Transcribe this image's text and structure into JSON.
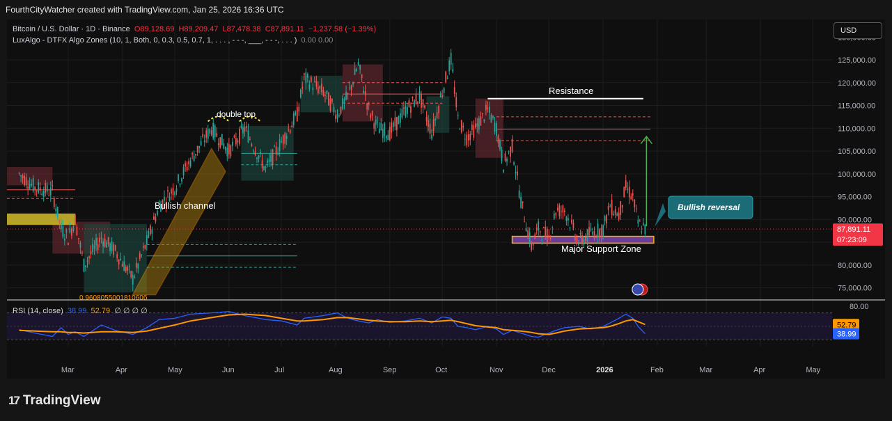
{
  "header": {
    "attribution": "FourthCityWatcher created with TradingView.com, Jan 25, 2026 16:36 UTC"
  },
  "legend": {
    "symbol": "Bitcoin / U.S. Dollar · 1D · Binance",
    "open": "O89,128.69",
    "high": "H89,209.47",
    "low": "L87,478.38",
    "close": "C87,891.11",
    "change": "−1,237.58 (−1.39%)",
    "indicator": "LuxAlgo - DTFX Algo Zones (10, 1, Both, 0, 0.3, 0.5, 0.7, 1, . . . , - - -, ___, - - -, . . . )",
    "indicator_values": "0.00  0.00"
  },
  "currency_button": "USD",
  "rsi_legend": {
    "name": "RSI (14, close)",
    "rsi": "38.99",
    "ma": "52.79",
    "extra": "∅ ∅ ∅ ∅"
  },
  "brand": "TradingView",
  "colors": {
    "up": "#26a69a",
    "down": "#ef5350",
    "rsi": "#2962ff",
    "rsi_ma": "#ff9800",
    "price_label": "#f23645",
    "callout": "#1b6c76",
    "arrow": "#4caf50",
    "support": "#6a3d9a"
  },
  "chart_data": [
    {
      "type": "line",
      "name_label": "Bitcoin / U.S. Dollar · 1D · Binance",
      "x_ticks": [
        "Mar",
        "Apr",
        "May",
        "Jun",
        "Jul",
        "Aug",
        "Sep",
        "Oct",
        "Nov",
        "Dec",
        "2026",
        "Feb",
        "Mar",
        "Apr",
        "May"
      ],
      "y_ticks": [
        75000,
        80000,
        85000,
        90000,
        95000,
        100000,
        105000,
        110000,
        115000,
        120000,
        125000
      ],
      "y_tick_labels": [
        "75,000.00",
        "80,000.00",
        "85,000.00",
        "90,000.00",
        "95,000.00",
        "100,000.00",
        "105,000.00",
        "110,000.00",
        "115,000.00",
        "120,000.00",
        "125,000.00"
      ],
      "y_top_partial": "130,000.00",
      "ylim": [
        72500,
        130500
      ],
      "series": [
        {
          "x": [
            "2025-02-01",
            "2025-02-10",
            "2025-02-20",
            "2025-02-25",
            "2025-03-01",
            "2025-03-05",
            "2025-03-10",
            "2025-03-20",
            "2025-03-28",
            "2025-04-07",
            "2025-04-15",
            "2025-04-22",
            "2025-05-01",
            "2025-05-10",
            "2025-05-22",
            "2025-06-01",
            "2025-06-10",
            "2025-06-22",
            "2025-07-01",
            "2025-07-10",
            "2025-07-14",
            "2025-07-25",
            "2025-08-02",
            "2025-08-08",
            "2025-08-14",
            "2025-08-20",
            "2025-08-25",
            "2025-09-01",
            "2025-09-10",
            "2025-09-18",
            "2025-09-25",
            "2025-10-01",
            "2025-10-06",
            "2025-10-10",
            "2025-10-15",
            "2025-10-20",
            "2025-10-27",
            "2025-11-01",
            "2025-11-05",
            "2025-11-10",
            "2025-11-15",
            "2025-11-21",
            "2025-11-25",
            "2025-12-01",
            "2025-12-05",
            "2025-12-10",
            "2025-12-18",
            "2025-12-25",
            "2026-01-01",
            "2026-01-05",
            "2026-01-10",
            "2026-01-14",
            "2026-01-18",
            "2026-01-21",
            "2026-01-25"
          ],
          "y": [
            100000,
            97000,
            96000,
            88000,
            86000,
            90000,
            80000,
            86000,
            83000,
            77000,
            85000,
            93000,
            97000,
            103000,
            110000,
            105000,
            110000,
            101000,
            107000,
            113000,
            121000,
            118000,
            113000,
            117000,
            124000,
            114000,
            110000,
            109000,
            114000,
            117000,
            109000,
            118000,
            125000,
            112000,
            108000,
            110000,
            114000,
            110000,
            102000,
            106000,
            94000,
            84000,
            88000,
            86000,
            92000,
            92000,
            85000,
            87000,
            88000,
            93000,
            91000,
            97000,
            95000,
            89000,
            87891
          ]
        }
      ],
      "annotations": [
        "double top",
        "Bullish channel",
        "0.960805500181060б",
        "Resistance",
        "Bullish reversal",
        "Major Support Zone"
      ],
      "last_price_label": "87,891.11",
      "countdown_label": "07:23:09"
    },
    {
      "type": "line",
      "name_label": "RSI (14, close)",
      "y_ticks_label": "80.00",
      "ylim": [
        20,
        82
      ],
      "series": [
        {
          "name": "RSI",
          "last": 38.99,
          "y": [
            45,
            40,
            35,
            48,
            38,
            42,
            35,
            52,
            44,
            38,
            48,
            60,
            62,
            68,
            70,
            72,
            66,
            60,
            58,
            52,
            62,
            66,
            70,
            62,
            58,
            55,
            60,
            56,
            58,
            62,
            55,
            64,
            62,
            50,
            48,
            45,
            50,
            46,
            38,
            44,
            40,
            35,
            34,
            40,
            44,
            48,
            50,
            46,
            50,
            55,
            62,
            68,
            62,
            50,
            38.99
          ]
        },
        {
          "name": "RSI MA",
          "last": 52.79,
          "y": [
            44,
            43,
            42,
            42,
            41,
            41,
            40,
            42,
            42,
            41,
            43,
            47,
            52,
            58,
            63,
            67,
            68,
            66,
            62,
            58,
            58,
            60,
            63,
            63,
            61,
            59,
            58,
            57,
            57,
            58,
            57,
            58,
            59,
            57,
            54,
            51,
            49,
            48,
            45,
            44,
            43,
            41,
            39,
            38,
            40,
            43,
            46,
            47,
            48,
            50,
            54,
            58,
            60,
            57,
            52.79
          ]
        }
      ],
      "rsi_value_label": "38.99",
      "ma_value_label": "52.79"
    }
  ]
}
